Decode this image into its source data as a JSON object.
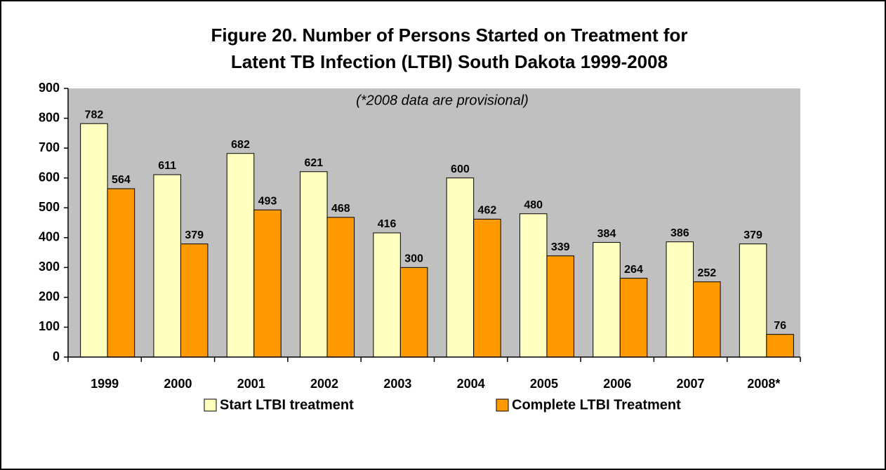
{
  "chart_data": {
    "type": "bar",
    "title": [
      "Figure 20.  Number of Persons Started on Treatment for",
      "Latent TB Infection (LTBI)   South Dakota  1999-2008"
    ],
    "annotation": "(*2008 data are provisional)",
    "categories": [
      "1999",
      "2000",
      "2001",
      "2002",
      "2003",
      "2004",
      "2005",
      "2006",
      "2007",
      "2008*"
    ],
    "series": [
      {
        "name": "Start LTBI treatment",
        "color": "#ffffc0",
        "values": [
          782,
          611,
          682,
          621,
          416,
          600,
          480,
          384,
          386,
          379
        ]
      },
      {
        "name": "Complete LTBI Treatment",
        "color": "#ff9900",
        "values": [
          564,
          379,
          493,
          468,
          300,
          462,
          339,
          264,
          252,
          76
        ]
      }
    ],
    "ylim": [
      0,
      900
    ],
    "yticks": [
      0,
      100,
      200,
      300,
      400,
      500,
      600,
      700,
      800,
      900
    ],
    "plot_background": "#c0c0c0"
  }
}
